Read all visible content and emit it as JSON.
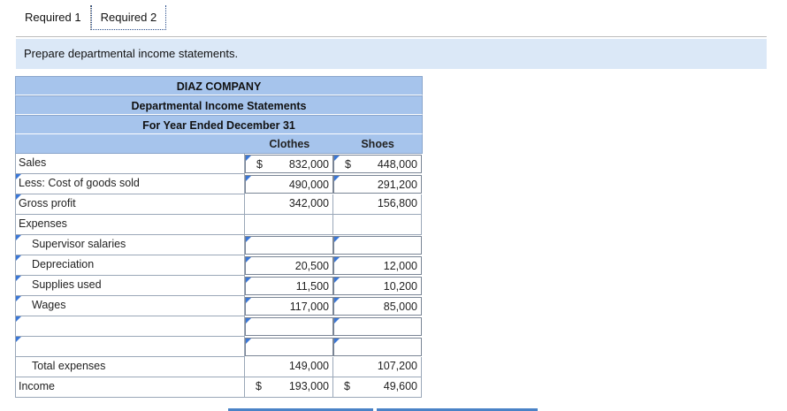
{
  "tabs": [
    "Required 1",
    "Required 2"
  ],
  "instruction": "Prepare departmental income statements.",
  "statement": {
    "company": "DIAZ COMPANY",
    "title": "Departmental Income Statements",
    "period": "For Year Ended December 31",
    "columns": [
      "Clothes",
      "Shoes"
    ],
    "rows": {
      "sales": {
        "label": "Sales",
        "clothes": "832,000",
        "shoes": "448,000",
        "dollar": "$"
      },
      "cogs": {
        "label": "Less: Cost of goods sold",
        "clothes": "490,000",
        "shoes": "291,200"
      },
      "gross": {
        "label": "Gross profit",
        "clothes": "342,000",
        "shoes": "156,800"
      },
      "expenses": {
        "label": "Expenses"
      },
      "supervisor": {
        "label": "Supervisor salaries",
        "clothes": "",
        "shoes": ""
      },
      "depreciation": {
        "label": "Depreciation",
        "clothes": "20,500",
        "shoes": "12,000"
      },
      "supplies": {
        "label": "Supplies used",
        "clothes": "11,500",
        "shoes": "10,200"
      },
      "wages": {
        "label": "Wages",
        "clothes": "117,000",
        "shoes": "85,000"
      },
      "blank1": {
        "label": "",
        "clothes": "",
        "shoes": ""
      },
      "blank2": {
        "label": "",
        "clothes": "",
        "shoes": ""
      },
      "total": {
        "label": "Total expenses",
        "clothes": "149,000",
        "shoes": "107,200"
      },
      "income": {
        "label": "Income",
        "clothes": "193,000",
        "shoes": "49,600",
        "dollar": "$"
      }
    }
  },
  "colors": {
    "header_bg": "#a6c4ec",
    "instruction_bg": "#dbe8f7",
    "flag": "#3b77d6"
  }
}
